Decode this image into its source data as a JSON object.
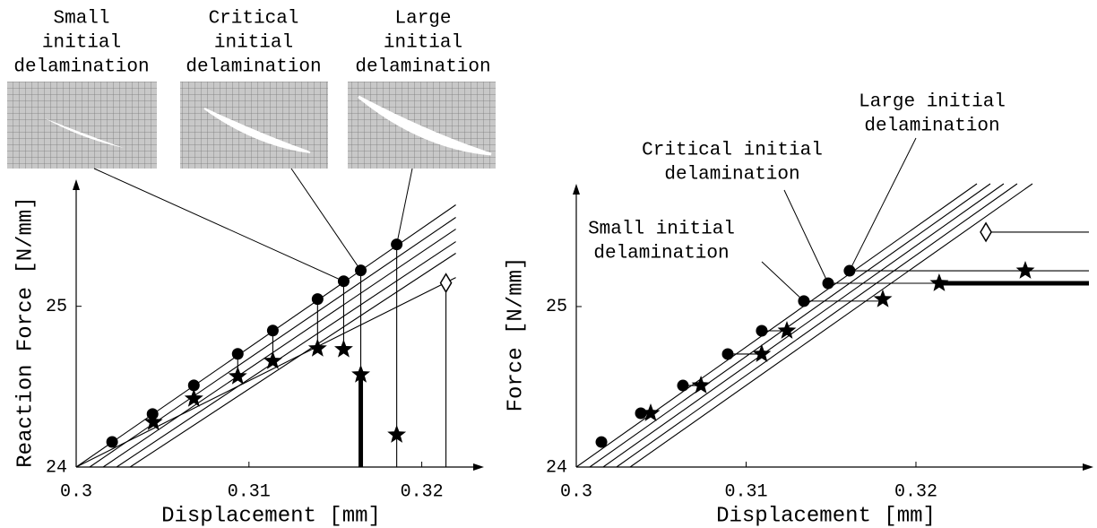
{
  "chart_data": [
    {
      "type": "scatter",
      "xlabel": "Displacement [mm]",
      "ylabel": "Reaction Force [N/mm]",
      "xlim": [
        0.3,
        0.3236
      ],
      "ylim": [
        24,
        25.79
      ],
      "xticks": [
        0.3,
        0.31,
        0.32
      ],
      "yticks": [
        24,
        25
      ],
      "annotations": [
        [
          "Small",
          "initial",
          "delamination"
        ],
        [
          "Critical",
          "initial",
          "delamination"
        ],
        [
          "Large",
          "initial",
          "delamination"
        ]
      ],
      "series": [
        {
          "marker": "circle",
          "color": "#000",
          "x": [
            0.30208,
            0.30442,
            0.30681,
            0.30935,
            0.31138,
            0.31397,
            0.31548,
            0.31647,
            0.31855
          ],
          "values": [
            24.156,
            24.33,
            24.508,
            24.704,
            24.849,
            25.045,
            25.156,
            25.223,
            25.385
          ]
        },
        {
          "marker": "star",
          "color": "#000",
          "x": [
            0.30447,
            0.30681,
            0.30935,
            0.31138,
            0.31397,
            0.31548,
            0.31647,
            0.31855
          ],
          "values": [
            24.279,
            24.425,
            24.564,
            24.659,
            24.737,
            24.732,
            24.575,
            24.201
          ]
        },
        {
          "marker": "diamond",
          "color": "#000",
          "x": [
            0.3214
          ],
          "values": [
            25.145
          ]
        }
      ],
      "lines": [
        {
          "x": [
            0.3,
            0.32197
          ],
          "values": [
            24,
            25.631
          ]
        },
        {
          "x": [
            0.30078,
            0.32197
          ],
          "values": [
            24,
            25.553
          ]
        },
        {
          "x": [
            0.30156,
            0.32197
          ],
          "values": [
            24,
            25.48
          ]
        },
        {
          "x": [
            0.30234,
            0.32197
          ],
          "values": [
            24,
            25.402
          ]
        },
        {
          "x": [
            0.30312,
            0.32197
          ],
          "values": [
            24,
            25.33
          ]
        },
        {
          "x": [
            0.3,
            0.32197
          ],
          "values": [
            24,
            25.179
          ]
        }
      ]
    },
    {
      "type": "scatter",
      "xlabel": "Displacement [mm]",
      "ylabel": "Force [N/mm]",
      "xlim": [
        0.3,
        0.33045
      ],
      "ylim": [
        24,
        25.765
      ],
      "xticks": [
        0.3,
        0.31,
        0.32
      ],
      "yticks": [
        24,
        25
      ],
      "annotations": [
        [
          "Small initial",
          "delamination"
        ],
        [
          "Critical initial",
          "delamination"
        ],
        [
          "Large initial",
          "delamination"
        ]
      ],
      "series": [
        {
          "marker": "circle",
          "color": "#000",
          "x": [
            0.30148,
            0.3038,
            0.30628,
            0.30892,
            0.31092,
            0.3134,
            0.31483,
            0.31609
          ],
          "values": [
            24.156,
            24.335,
            24.508,
            24.704,
            24.849,
            25.034,
            25.145,
            25.223
          ]
        },
        {
          "marker": "star",
          "color": "#000",
          "x": [
            0.30438,
            0.30734,
            0.31092,
            0.3124,
            0.31805,
            0.32137,
            0.32644
          ],
          "values": [
            24.335,
            24.508,
            24.704,
            24.849,
            25.045,
            25.145,
            25.223
          ]
        },
        {
          "marker": "diamond",
          "color": "#000",
          "x": [
            0.32412
          ],
          "values": [
            25.464
          ]
        }
      ],
      "lines": [
        {
          "x": [
            0.3,
            0.32359
          ],
          "values": [
            24,
            25.765
          ]
        },
        {
          "x": [
            0.30079,
            0.32438
          ],
          "values": [
            24,
            25.765
          ]
        },
        {
          "x": [
            0.30158,
            0.32517
          ],
          "values": [
            24,
            25.765
          ]
        },
        {
          "x": [
            0.30237,
            0.32596
          ],
          "values": [
            24,
            25.765
          ]
        },
        {
          "x": [
            0.30317,
            0.32686
          ],
          "values": [
            24,
            25.765
          ]
        }
      ]
    }
  ]
}
